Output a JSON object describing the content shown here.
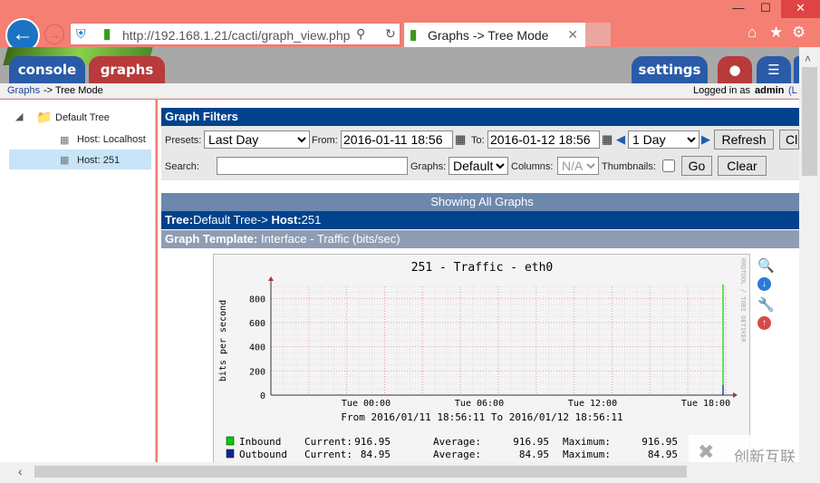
{
  "browser": {
    "url": "http://192.168.1.21/cacti/graph_view.php",
    "tab_title": "Graphs -> Tree Mode",
    "window_controls": [
      "minimize",
      "maximize",
      "close"
    ]
  },
  "header": {
    "tabs": [
      {
        "label": "console",
        "color": "#2a5ba8"
      },
      {
        "label": "graphs",
        "color": "#b83a3a"
      }
    ],
    "settings_label": "settings"
  },
  "breadcrumb": {
    "link": "Graphs",
    "rest": "-> Tree Mode",
    "logged_in": "Logged in as",
    "user": "admin",
    "logout": "(L"
  },
  "tree": {
    "root": "Default Tree",
    "items": [
      "Host: Localhost",
      "Host: 251"
    ],
    "selected": 1
  },
  "filters": {
    "title": "Graph Filters",
    "presets_label": "Presets:",
    "preset": "Last Day",
    "from_label": "From:",
    "from": "2016-01-11 18:56",
    "to_label": "To:",
    "to": "2016-01-12 18:56",
    "span": "1 Day",
    "refresh": "Refresh",
    "clear_partial": "Cl",
    "search_label": "Search:",
    "search": "",
    "graphs_label": "Graphs:",
    "graphs": "Default",
    "columns_label": "Columns:",
    "columns": "N/A",
    "thumbnails_label": "Thumbnails:",
    "go": "Go",
    "clear": "Clear"
  },
  "showing": "Showing All Graphs",
  "tree_bar": {
    "tree_label": "Tree:",
    "tree": "Default Tree->",
    "host_label": "Host:",
    "host": "251"
  },
  "template_bar": {
    "label": "Graph Template:",
    "value": "Interface - Traffic (bits/sec)"
  },
  "chart_data": {
    "type": "line",
    "title": "251 - Traffic - eth0",
    "ylabel": "bits per second",
    "ylim": [
      0,
      900
    ],
    "yticks": [
      0,
      200,
      400,
      600,
      800
    ],
    "xticks": [
      "Tue 00:00",
      "Tue 06:00",
      "Tue 12:00",
      "Tue 18:00"
    ],
    "xrange": [
      "2016/01/11 18:56:11",
      "2016/01/12 18:56:11"
    ],
    "subtitle": "From 2016/01/11 18:56:11 To 2016/01/12 18:56:11",
    "watermark": "RRDTOOL / TOBI OETIKER",
    "grid": true,
    "series": [
      {
        "name": "Inbound",
        "color": "#00cf00",
        "current": "916.95",
        "average": "916.95",
        "maximum": "916.95",
        "last_value": 916.95
      },
      {
        "name": "Outbound",
        "color": "#002a97",
        "current": "84.95",
        "average": "84.95",
        "maximum": "84.95",
        "last_value": 84.95
      }
    ],
    "legend_labels": {
      "current": "Current:",
      "average": "Average:",
      "maximum": "Maximum:"
    }
  },
  "graph_actions": [
    "zoom-icon",
    "download-icon",
    "properties-icon",
    "move-up-icon"
  ],
  "watermark_brand": "创新互联"
}
